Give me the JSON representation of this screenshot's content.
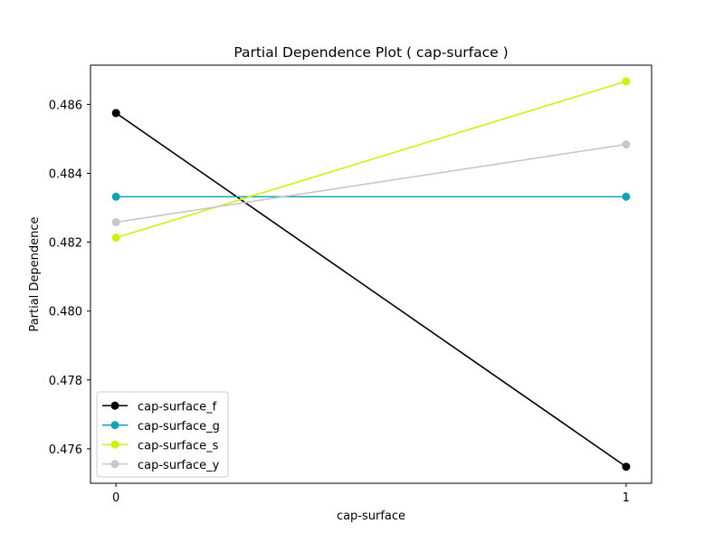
{
  "chart_data": {
    "type": "line",
    "title": "Partial Dependence Plot ( cap-surface )",
    "xlabel": "cap-surface",
    "ylabel": "Partial Dependence",
    "x": [
      0,
      1
    ],
    "xticks": [
      "0",
      "1"
    ],
    "yticks": [
      "0.476",
      "0.478",
      "0.480",
      "0.482",
      "0.484",
      "0.486"
    ],
    "xlim": [
      -0.05,
      1.05
    ],
    "ylim": [
      0.475,
      0.48714
    ],
    "grid": false,
    "legend_position": "lower-left",
    "series": [
      {
        "name": "cap-surface_f",
        "color": "#000000",
        "values": [
          0.48575,
          0.47548
        ]
      },
      {
        "name": "cap-surface_g",
        "color": "#12a3b4",
        "values": [
          0.48332,
          0.48332
        ]
      },
      {
        "name": "cap-surface_s",
        "color": "#ccf20d",
        "values": [
          0.48213,
          0.48667
        ]
      },
      {
        "name": "cap-surface_y",
        "color": "#c8c8c8",
        "values": [
          0.48258,
          0.48484
        ]
      }
    ]
  }
}
